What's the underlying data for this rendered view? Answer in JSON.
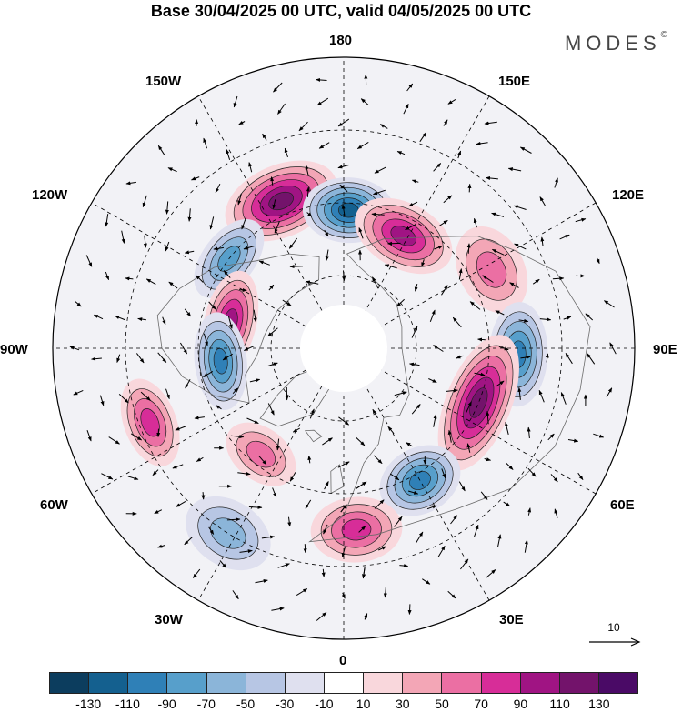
{
  "title": "Base 30/04/2025 00 UTC, valid 04/05/2025 00 UTC",
  "brand": "MODES",
  "brand_mark": "©",
  "longitude_labels": {
    "top": "180",
    "top_left": "150W",
    "top_right": "150E",
    "upper_left": "120W",
    "upper_right": "120E",
    "left": "90W",
    "right": "90E",
    "lower_left": "60W",
    "lower_right": "60E",
    "bottom_left": "30W",
    "bottom_right": "30E",
    "bottom": "0"
  },
  "reference_vector": "10",
  "colorbar": {
    "tick_labels": [
      "-130",
      "-110",
      "-90",
      "-70",
      "-50",
      "-30",
      "-10",
      "10",
      "30",
      "50",
      "70",
      "90",
      "110",
      "130"
    ],
    "colors": [
      "#0c3d5e",
      "#14608f",
      "#2f80b7",
      "#579fcb",
      "#8bb5d9",
      "#b7c6e4",
      "#dfe0ef",
      "#ffffff",
      "#f9d7dc",
      "#f3a6b6",
      "#eb6fa3",
      "#d72d98",
      "#a01483",
      "#73136b",
      "#4a0a66"
    ]
  },
  "anomaly_centers": [
    {
      "sign": "positive",
      "level": 4,
      "lon": -157,
      "lat": 46,
      "rx": 18,
      "ry": 11
    },
    {
      "sign": "negative",
      "level": 4,
      "lon": 178,
      "lat": 52,
      "rx": 14,
      "ry": 10
    },
    {
      "sign": "positive",
      "level": 3,
      "lon": 152,
      "lat": 55,
      "rx": 16,
      "ry": 10
    },
    {
      "sign": "negative",
      "level": 2,
      "lon": -128,
      "lat": 50,
      "rx": 14,
      "ry": 8
    },
    {
      "sign": "positive",
      "level": 3,
      "lon": -103,
      "lat": 58,
      "rx": 16,
      "ry": 8
    },
    {
      "sign": "negative",
      "level": 3,
      "lon": -84,
      "lat": 56,
      "rx": 15,
      "ry": 8
    },
    {
      "sign": "positive",
      "level": 1,
      "lon": 118,
      "lat": 44,
      "rx": 14,
      "ry": 10
    },
    {
      "sign": "negative",
      "level": 3,
      "lon": 88,
      "lat": 42,
      "rx": 16,
      "ry": 9
    },
    {
      "sign": "positive",
      "level": 4,
      "lon": 68,
      "lat": 50,
      "rx": 22,
      "ry": 10
    },
    {
      "sign": "negative",
      "level": 3,
      "lon": 30,
      "lat": 48,
      "rx": 13,
      "ry": 10
    },
    {
      "sign": "positive",
      "level": 2,
      "lon": 4,
      "lat": 40,
      "rx": 14,
      "ry": 10
    },
    {
      "sign": "positive",
      "level": 1,
      "lon": -38,
      "lat": 53,
      "rx": 12,
      "ry": 8
    },
    {
      "sign": "positive",
      "level": 2,
      "lon": -69,
      "lat": 33,
      "rx": 14,
      "ry": 8
    },
    {
      "sign": "negative",
      "level": 1,
      "lon": -32,
      "lat": 30,
      "rx": 14,
      "ry": 10
    }
  ]
}
